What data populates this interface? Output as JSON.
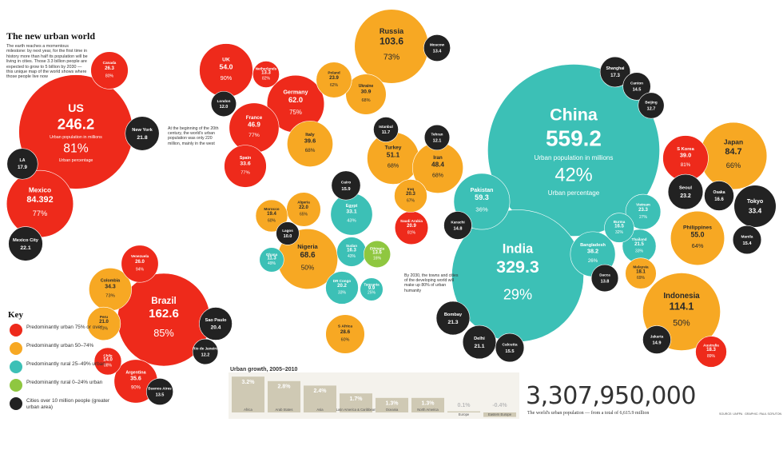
{
  "header": {
    "title": "The new urban world",
    "intro": "The earth reaches a momentous milestone: by next year, for the first time in history more than half its population will be living in cities. Those 3.3 billion people are expected to grow to 5 billion by 2030 — this unique map of the world shows where those people live now"
  },
  "annotations": [
    "At the beginning of the 20th century, the world's urban population was only 220 million, mainly in the west",
    "By 2030, the towns and cities of the developing world will make up 80% of urban humanity"
  ],
  "chart_data": [
    {
      "type": "bubble",
      "legend_title": "Key",
      "value_caption": "Urban population in millions",
      "share_caption": "Urban percentage",
      "series": [
        {
          "name": "Predominantly urban 75% or over",
          "color": "#ee2a1b",
          "categories": [
            "US",
            "Mexico",
            "Canada",
            "UK",
            "France",
            "Spain",
            "Germany",
            "Netherlands",
            "Brazil",
            "Venezuela",
            "Argentina",
            "Chile",
            "S Korea",
            "Australia",
            "Saudi Arabia"
          ],
          "values": [
            246.2,
            84.392,
            26.3,
            54.0,
            46.9,
            33.6,
            62.0,
            13.3,
            162.6,
            26.0,
            35.6,
            14.0,
            39.0,
            18.3,
            20.9
          ],
          "value_labels": [
            "246.2",
            "84.392",
            "26.3",
            "54.0",
            "46.9",
            "33.6",
            "62.0",
            "13.3",
            "162.6",
            "26.0",
            "35.6",
            "14.0",
            "39.0",
            "18.3",
            "20.9"
          ],
          "shares": [
            81,
            77,
            80,
            90,
            77,
            77,
            75,
            82,
            85,
            94,
            90,
            88,
            81,
            89,
            81
          ],
          "share_labels": [
            "81%",
            "77%",
            "80%",
            "90%",
            "77%",
            "77%",
            "75%",
            "82%",
            "85%",
            "94%",
            "90%",
            "88%",
            "81%",
            "89%",
            "81%"
          ]
        },
        {
          "name": "Predominantly urban 50–74%",
          "color": "#f7a823",
          "categories": [
            "Russia",
            "Poland",
            "Ukraine",
            "Italy",
            "Turkey",
            "Iran",
            "Iraq",
            "Japan",
            "Colombia",
            "Peru",
            "Algeria",
            "Morocco",
            "Nigeria",
            "Philippines",
            "Indonesia",
            "Malaysia",
            "S Africa"
          ],
          "values": [
            103.6,
            23.9,
            30.9,
            39.6,
            51.1,
            48.4,
            20.3,
            84.7,
            34.3,
            21.0,
            22.0,
            19.4,
            68.6,
            55.0,
            114.1,
            18.1,
            28.6
          ],
          "value_labels": [
            "103.6",
            "23.9",
            "30.9",
            "39.6",
            "51.1",
            "48.4",
            "20.3",
            "84.7",
            "34.3",
            "21.0",
            "22.0",
            "19.4",
            "68.6",
            "55.0",
            "114.1",
            "18.1",
            "28.6"
          ],
          "shares": [
            73,
            62,
            68,
            68,
            68,
            68,
            67,
            66,
            73,
            73,
            65,
            60,
            50,
            64,
            50,
            69,
            60
          ],
          "share_labels": [
            "73%",
            "62%",
            "68%",
            "68%",
            "68%",
            "68%",
            "67%",
            "66%",
            "73%",
            "73%",
            "65%",
            "60%",
            "50%",
            "64%",
            "50%",
            "69%",
            "60%"
          ]
        },
        {
          "name": "Predominantly rural 25–49% urban",
          "color": "#3cc0b6",
          "categories": [
            "China",
            "India",
            "Pakistan",
            "Egypt",
            "Vietnam",
            "Bangladesh",
            "Burma",
            "Thailand",
            "Sudan",
            "Ghana",
            "DR Congo",
            "Tanzania"
          ],
          "values": [
            559.2,
            329.3,
            59.3,
            33.1,
            23.3,
            38.2,
            16.5,
            21.5,
            16.3,
            11.3,
            20.2,
            9.9
          ],
          "value_labels": [
            "559.2",
            "329.3",
            "59.3",
            "33.1",
            "23.3",
            "38.2",
            "16.5",
            "21.5",
            "16.3",
            "11.3",
            "20.2",
            "9.9"
          ],
          "shares": [
            42,
            29,
            36,
            43,
            27,
            26,
            32,
            33,
            43,
            49,
            33,
            25
          ],
          "share_labels": [
            "42%",
            "29%",
            "36%",
            "43%",
            "27%",
            "26%",
            "32%",
            "33%",
            "43%",
            "49%",
            "33%",
            "25%"
          ]
        },
        {
          "name": "Predominantly rural 0–24% urban",
          "color": "#8fc740",
          "categories": [
            "Ethiopia"
          ],
          "values": [
            13.6
          ],
          "value_labels": [
            "13.6"
          ],
          "shares": [
            16
          ],
          "share_labels": [
            "16%"
          ]
        },
        {
          "name": "Cities over 10 million people (greater urban area)",
          "color": "#222222",
          "categories": [
            "New York",
            "LA",
            "Mexico City",
            "London",
            "Moscow",
            "Shanghai",
            "Canton",
            "Beijing",
            "Cairo",
            "Istanbul",
            "Tehran",
            "Karachi",
            "Lagos",
            "Seoul",
            "Osaka",
            "Tokyo",
            "Manila",
            "Dacca",
            "Bombay",
            "Delhi",
            "Calcutta",
            "Jakarta",
            "Sao Paulo",
            "Rio de Janeiro",
            "Buenos Aires"
          ],
          "values": [
            21.8,
            17.9,
            22.1,
            12.0,
            13.4,
            17.3,
            14.5,
            12.7,
            15.9,
            11.7,
            12.1,
            14.8,
            10.0,
            23.2,
            16.6,
            33.4,
            15.4,
            13.8,
            21.3,
            21.1,
            15.5,
            14.9,
            20.4,
            12.2,
            13.5
          ],
          "value_labels": [
            "21.8",
            "17.9",
            "22.1",
            "12.0",
            "13.4",
            "17.3",
            "14.5",
            "12.7",
            "15.9",
            "11.7",
            "12.1",
            "14.8",
            "10.0",
            "23.2",
            "16.6",
            "33.4",
            "15.4",
            "13.8",
            "21.3",
            "21.1",
            "15.5",
            "14.9",
            "20.4",
            "12.2",
            "13.5"
          ]
        }
      ]
    },
    {
      "type": "bar",
      "title": "Urban growth, 2005–2010",
      "color": "#cfc9b4",
      "categories": [
        "Africa",
        "Arab States",
        "Asia",
        "Latin America & Caribbean",
        "Oceania",
        "North America",
        "Europe",
        "Eastern Europe"
      ],
      "values": [
        3.2,
        2.8,
        2.4,
        1.7,
        1.3,
        1.3,
        0.1,
        -0.4
      ],
      "value_labels": [
        "3.2%",
        "2.8%",
        "2.4%",
        "1.7%",
        "1.3%",
        "1.3%",
        "0.1%",
        "-0.4%"
      ]
    }
  ],
  "total": {
    "figure": "3,307,950,000",
    "caption": "The world's urban population — from a total of 6,615.9 million"
  },
  "credit": "SOURCE: UNFPA   GRAPHIC: PAUL SCRUTON"
}
